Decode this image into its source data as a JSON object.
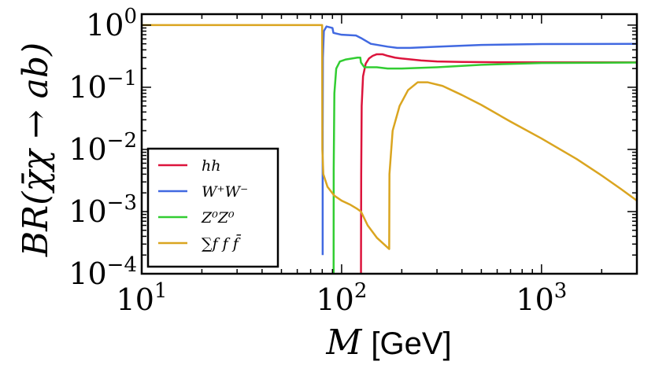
{
  "chart_data": {
    "type": "line",
    "title": "",
    "xlabel": {
      "var": "M",
      "unit": "[GeV]"
    },
    "ylabel": "BR(χ̄χ → ab)",
    "xscale": "log",
    "yscale": "log",
    "xlim": [
      10,
      3000
    ],
    "ylim": [
      0.0001,
      1.5
    ],
    "x_ticks": [
      {
        "value": 10,
        "base": "10",
        "exp": "1"
      },
      {
        "value": 100,
        "base": "10",
        "exp": "2"
      },
      {
        "value": 1000,
        "base": "10",
        "exp": "3"
      }
    ],
    "y_ticks": [
      {
        "value": 1,
        "base": "10",
        "exp": "0"
      },
      {
        "value": 0.1,
        "base": "10",
        "exp": "−1"
      },
      {
        "value": 0.01,
        "base": "10",
        "exp": "−2"
      },
      {
        "value": 0.001,
        "base": "10",
        "exp": "−3"
      },
      {
        "value": 0.0001,
        "base": "10",
        "exp": "−4"
      }
    ],
    "legend_position": "lower-left",
    "series": [
      {
        "name": "hh",
        "label": "hh",
        "color": "#dc143c",
        "points": [
          [
            125,
            0.0001
          ],
          [
            125.3,
            0.004
          ],
          [
            126,
            0.05
          ],
          [
            128,
            0.15
          ],
          [
            132,
            0.24
          ],
          [
            137,
            0.29
          ],
          [
            143,
            0.32
          ],
          [
            150,
            0.34
          ],
          [
            160,
            0.34
          ],
          [
            170,
            0.32
          ],
          [
            185,
            0.3
          ],
          [
            200,
            0.29
          ],
          [
            250,
            0.27
          ],
          [
            300,
            0.26
          ],
          [
            400,
            0.255
          ],
          [
            600,
            0.253
          ],
          [
            1000,
            0.252
          ],
          [
            3000,
            0.252
          ]
        ]
      },
      {
        "name": "WW",
        "label": "W⁺W⁻",
        "color": "#4169e1",
        "points": [
          [
            80.4,
            0.0002
          ],
          [
            80.4,
            0.02
          ],
          [
            80.6,
            0.3
          ],
          [
            81.5,
            0.8
          ],
          [
            84,
            0.95
          ],
          [
            90,
            0.9
          ],
          [
            91,
            0.75
          ],
          [
            100,
            0.7
          ],
          [
            118,
            0.68
          ],
          [
            125,
            0.62
          ],
          [
            140,
            0.5
          ],
          [
            170,
            0.45
          ],
          [
            190,
            0.43
          ],
          [
            220,
            0.43
          ],
          [
            300,
            0.45
          ],
          [
            500,
            0.48
          ],
          [
            1000,
            0.495
          ],
          [
            3000,
            0.5
          ]
        ]
      },
      {
        "name": "ZZ",
        "label": "Z⁰Z⁰",
        "color": "#32cd32",
        "points": [
          [
            91.2,
            0.0001
          ],
          [
            91.3,
            0.005
          ],
          [
            92,
            0.08
          ],
          [
            94,
            0.2
          ],
          [
            98,
            0.26
          ],
          [
            105,
            0.28
          ],
          [
            120,
            0.3
          ],
          [
            124,
            0.3
          ],
          [
            125,
            0.25
          ],
          [
            130,
            0.21
          ],
          [
            150,
            0.21
          ],
          [
            170,
            0.2
          ],
          [
            200,
            0.2
          ],
          [
            300,
            0.21
          ],
          [
            500,
            0.23
          ],
          [
            1000,
            0.245
          ],
          [
            3000,
            0.25
          ]
        ]
      },
      {
        "name": "ff",
        "label": "∑f f f̄",
        "color": "#daa520",
        "points": [
          [
            10,
            1.0
          ],
          [
            78,
            1.0
          ],
          [
            79.9,
            1.0
          ],
          [
            80.1,
            0.01
          ],
          [
            81,
            0.004
          ],
          [
            85,
            0.0025
          ],
          [
            92,
            0.0018
          ],
          [
            100,
            0.0015
          ],
          [
            110,
            0.0013
          ],
          [
            120,
            0.0011
          ],
          [
            125,
            0.001
          ],
          [
            135,
            0.0006
          ],
          [
            150,
            0.00038
          ],
          [
            173,
            0.00025
          ],
          [
            173.5,
            0.004
          ],
          [
            180,
            0.02
          ],
          [
            195,
            0.05
          ],
          [
            215,
            0.09
          ],
          [
            240,
            0.12
          ],
          [
            270,
            0.12
          ],
          [
            320,
            0.105
          ],
          [
            400,
            0.075
          ],
          [
            500,
            0.052
          ],
          [
            700,
            0.028
          ],
          [
            1000,
            0.015
          ],
          [
            1500,
            0.007
          ],
          [
            2000,
            0.0038
          ],
          [
            2500,
            0.0023
          ],
          [
            3000,
            0.0015
          ]
        ]
      }
    ]
  }
}
